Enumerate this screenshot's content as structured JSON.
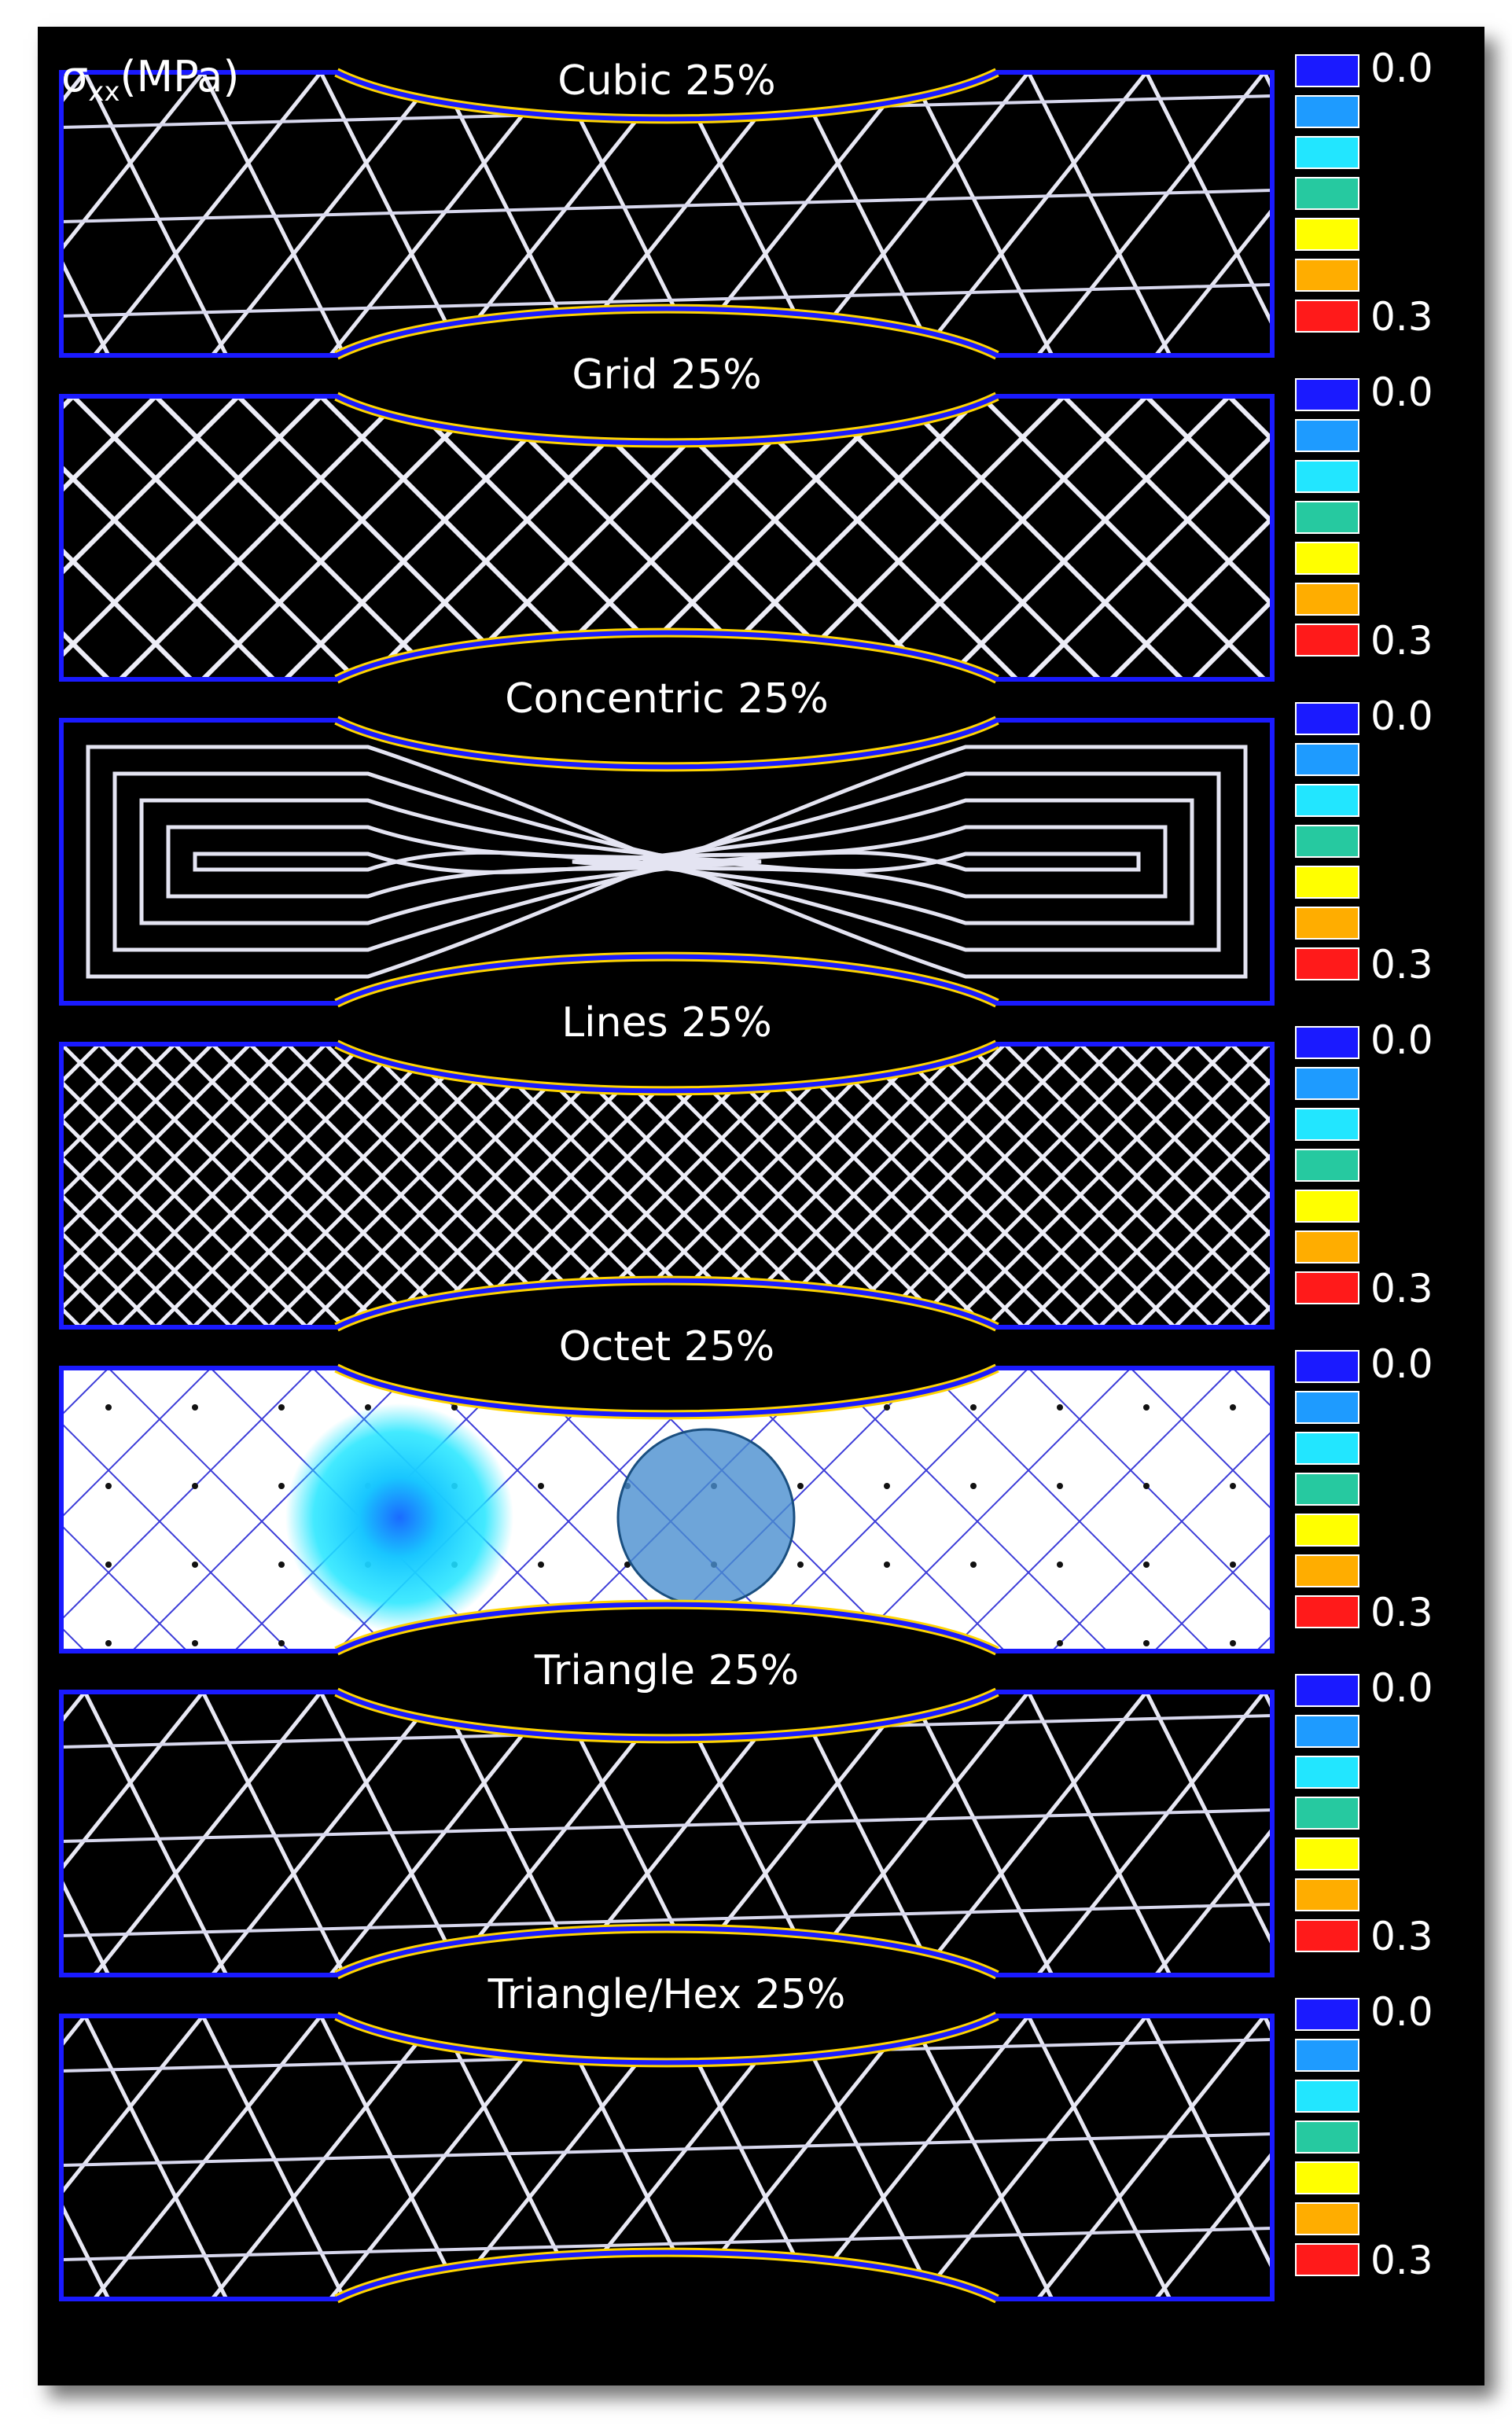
{
  "axis_symbol": "σ",
  "axis_subscript": "xx",
  "axis_unit": "(MPa)",
  "colorbar": {
    "min_label": "0.0",
    "max_label": "0.3",
    "colors": [
      "#1a1aff",
      "#1e9bff",
      "#22e6ff",
      "#26c9a0",
      "#ffff00",
      "#ffad00",
      "#ff1a1a"
    ]
  },
  "panels": [
    {
      "title": "Cubic 25%",
      "pattern": "cubic"
    },
    {
      "title": "Grid 25%",
      "pattern": "grid"
    },
    {
      "title": "Concentric 25%",
      "pattern": "concentric"
    },
    {
      "title": "Lines 25%",
      "pattern": "lines"
    },
    {
      "title": "Octet 25%",
      "pattern": "octet"
    },
    {
      "title": "Triangle 25%",
      "pattern": "triangle"
    },
    {
      "title": "Triangle/Hex 25%",
      "pattern": "trihex"
    }
  ]
}
